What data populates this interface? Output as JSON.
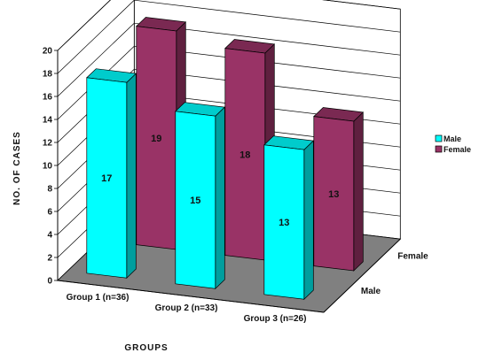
{
  "chart_data": {
    "type": "bar",
    "style": "3d-clustered-depth",
    "title": "",
    "xlabel": "GROUPS",
    "ylabel": "NO. OF CASES",
    "ylim": [
      0,
      20
    ],
    "yticks": [
      "0",
      "2",
      "4",
      "6",
      "8",
      "10",
      "12",
      "14",
      "16",
      "18",
      "20"
    ],
    "categories": [
      "Group 1 (n=36)",
      "Group 2 (n=33)",
      "Group 3 (n=26)"
    ],
    "depth_labels": [
      "Female",
      "Male"
    ],
    "grid": true,
    "legend_position": "right",
    "series": [
      {
        "name": "Male",
        "values": [
          17,
          15,
          13
        ],
        "color": "#00ffff"
      },
      {
        "name": "Female",
        "values": [
          19,
          18,
          13
        ],
        "color": "#993366"
      }
    ],
    "data_labels": [
      [
        "17",
        "15",
        "13"
      ],
      [
        "19",
        "18",
        "13"
      ]
    ],
    "colors": {
      "floor": "#808080",
      "wall": "#ffffff",
      "gridline": "#000000"
    }
  }
}
